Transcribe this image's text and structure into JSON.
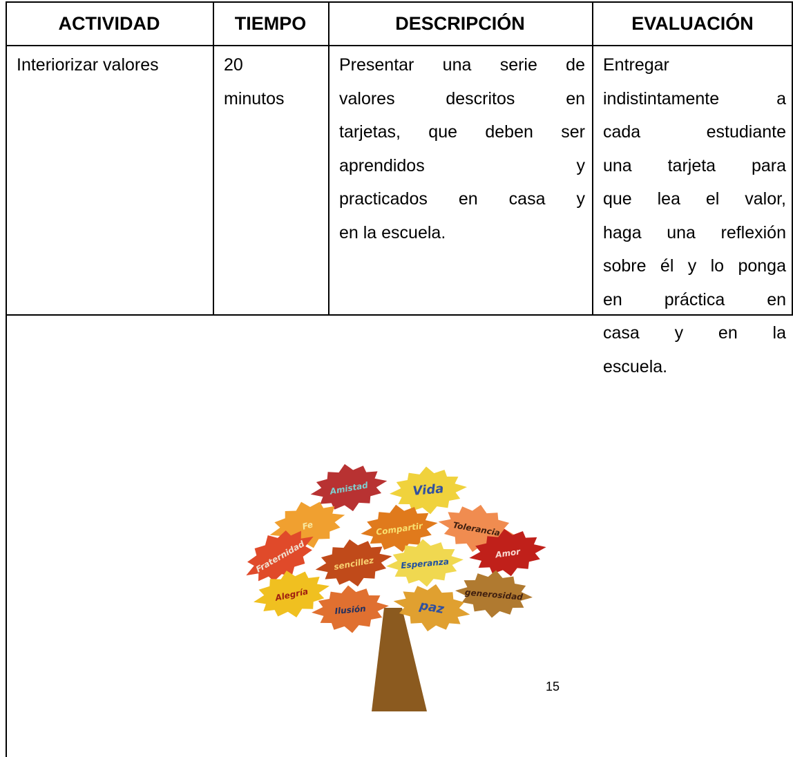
{
  "table": {
    "headers": [
      "ACTIVIDAD",
      "TIEMPO",
      "DESCRIPCIÓN",
      "EVALUACIÓN"
    ],
    "rows": [
      [
        [
          "Interiorizar valores"
        ],
        [
          "20",
          "minutos"
        ],
        [
          "Presentar una serie de",
          "valores descritos en",
          "tarjetas, que deben ser",
          "aprendidos y",
          "practicados en casa y",
          "en la escuela."
        ],
        [
          "Entregar",
          "indistintamente a",
          "cada estudiante",
          "una tarjeta para",
          "que lea el valor,",
          "haga una reflexión",
          "sobre él y lo ponga",
          "en práctica en",
          "casa y en la",
          "escuela."
        ]
      ]
    ]
  },
  "image": {
    "leaves": [
      "Amistad",
      "Vida",
      "Fe",
      "Tolerancia",
      "Compartir",
      "Fraternidad",
      "Amor",
      "sencillez",
      "Esperanza",
      "Alegría",
      "generosidad",
      "Ilusión",
      "paz"
    ]
  },
  "page_number": "15"
}
